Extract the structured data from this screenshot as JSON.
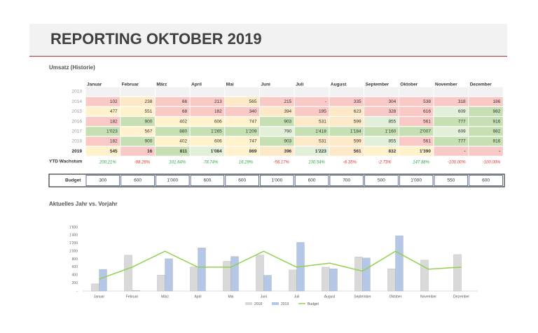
{
  "header": {
    "title": "REPORTING OKTOBER 2019"
  },
  "table": {
    "title": "Umsatz (Historie)",
    "columns": [
      "Januar",
      "Februar",
      "März",
      "April",
      "Mai",
      "Juni",
      "Juli",
      "August",
      "September",
      "Oktober",
      "November",
      "Dezember"
    ],
    "rows": [
      {
        "label": "2013",
        "cells": []
      },
      {
        "label": "2014",
        "cells": [
          "102",
          "238",
          "66",
          "213",
          "565",
          "215",
          "-",
          "335",
          "304",
          "538",
          "318",
          "186"
        ]
      },
      {
        "label": "2015",
        "cells": [
          "477",
          "551",
          "68",
          "182",
          "340",
          "394",
          "195",
          "623",
          "328",
          "616",
          "609",
          "982"
        ]
      },
      {
        "label": "2016",
        "cells": [
          "182",
          "900",
          "402",
          "606",
          "747",
          "903",
          "531",
          "599",
          "855",
          "561",
          "777",
          "916"
        ]
      },
      {
        "label": "2017",
        "cells": [
          "1'023",
          "567",
          "880",
          "1'265",
          "1'209",
          "790",
          "1'418",
          "1'184",
          "1'160",
          "2'007",
          "609",
          "982"
        ]
      },
      {
        "label": "2018",
        "cells": [
          "182",
          "900",
          "402",
          "606",
          "747",
          "903",
          "531",
          "599",
          "855",
          "561",
          "777",
          "916"
        ]
      },
      {
        "label": "2019",
        "cells": [
          "545",
          "16",
          "811",
          "1'084",
          "869",
          "396",
          "1'223",
          "561",
          "832",
          "1'390",
          "-",
          "-"
        ]
      }
    ],
    "ytd": {
      "label": "YTD Wachstum",
      "values": [
        "200.21%",
        "-98.26%",
        "101.64%",
        "78.74%",
        "16.29%",
        "-56.17%",
        "130.54%",
        "-6.35%",
        "-2.73%",
        "147.88%",
        "-100.00%",
        "-100.00%"
      ]
    },
    "budget": {
      "label": "Budget",
      "values": [
        "300",
        "600",
        "1'000",
        "600",
        "600",
        "1'000",
        "600",
        "700",
        "500",
        "1'000",
        "550",
        "600"
      ]
    }
  },
  "chart_data": {
    "type": "bar",
    "title": "Aktuelles Jahr vs. Vorjahr",
    "categories": [
      "Januar",
      "Februar",
      "März",
      "April",
      "Mai",
      "Juni",
      "Juli",
      "August",
      "September",
      "Oktober",
      "November",
      "Dezember"
    ],
    "series": [
      {
        "name": "2018",
        "color": "#d9d9d9",
        "values": [
          182,
          900,
          402,
          606,
          747,
          903,
          531,
          599,
          855,
          561,
          777,
          916
        ]
      },
      {
        "name": "2019",
        "color": "#b4c7e7",
        "values": [
          545,
          16,
          811,
          1084,
          869,
          396,
          1223,
          561,
          832,
          1390,
          null,
          null
        ]
      },
      {
        "name": "Budget",
        "type": "line",
        "color": "#92d050",
        "values": [
          300,
          600,
          1000,
          600,
          600,
          1000,
          600,
          700,
          500,
          1000,
          550,
          600
        ]
      }
    ],
    "ylim": [
      0,
      1600
    ],
    "yticks": [
      {
        "value": 0,
        "label": "-"
      },
      200,
      400,
      600,
      800,
      {
        "value": 1000,
        "label": "1'000"
      },
      {
        "value": 1200,
        "label": "1'200"
      },
      {
        "value": 1400,
        "label": "1'400"
      },
      {
        "value": 1600,
        "label": "1'600"
      }
    ]
  }
}
